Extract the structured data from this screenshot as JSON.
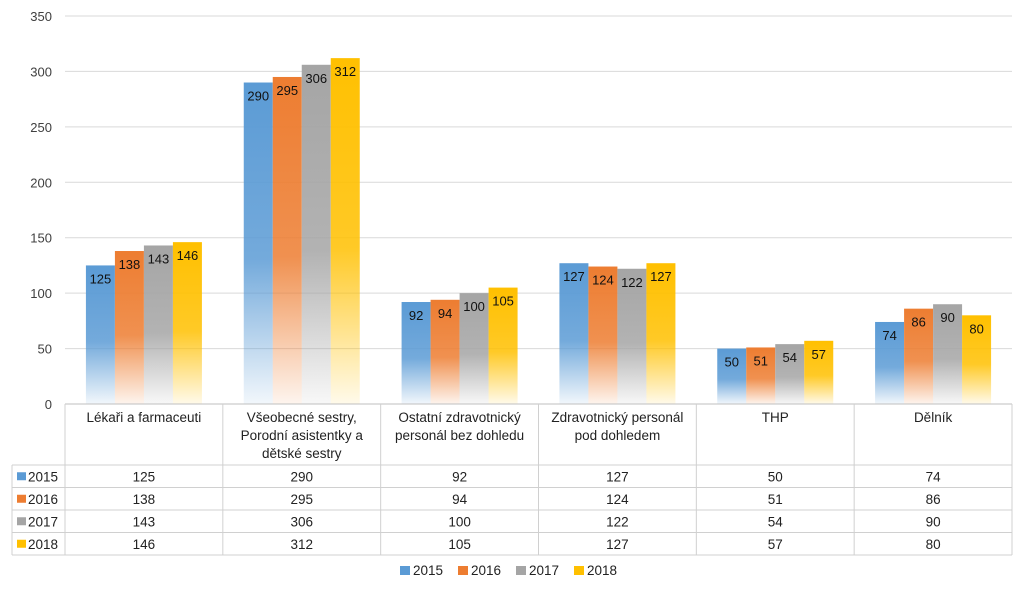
{
  "chart_data": {
    "type": "bar",
    "title": "",
    "xlabel": "",
    "ylabel": "",
    "ylim": [
      0,
      350
    ],
    "yticks": [
      0,
      50,
      100,
      150,
      200,
      250,
      300,
      350
    ],
    "grid": true,
    "legend": "bottom",
    "data_table": true,
    "categories": [
      [
        "Lékaři a farmaceuti"
      ],
      [
        "Všeobecné sestry,",
        "Porodní asistentky a",
        "dětské sestry"
      ],
      [
        "Ostatní zdravotnický",
        "personál bez dohledu"
      ],
      [
        "Zdravotnický personál",
        "pod dohledem"
      ],
      [
        "THP"
      ],
      [
        "Dělník"
      ]
    ],
    "series": [
      {
        "name": "2015",
        "color": "#5b9bd5",
        "values": [
          125,
          290,
          92,
          127,
          50,
          74
        ]
      },
      {
        "name": "2016",
        "color": "#ed7d31",
        "values": [
          138,
          295,
          94,
          124,
          51,
          86
        ]
      },
      {
        "name": "2017",
        "color": "#a5a5a5",
        "values": [
          143,
          306,
          100,
          122,
          54,
          90
        ]
      },
      {
        "name": "2018",
        "color": "#ffc000",
        "values": [
          146,
          312,
          105,
          127,
          57,
          80
        ]
      }
    ]
  }
}
